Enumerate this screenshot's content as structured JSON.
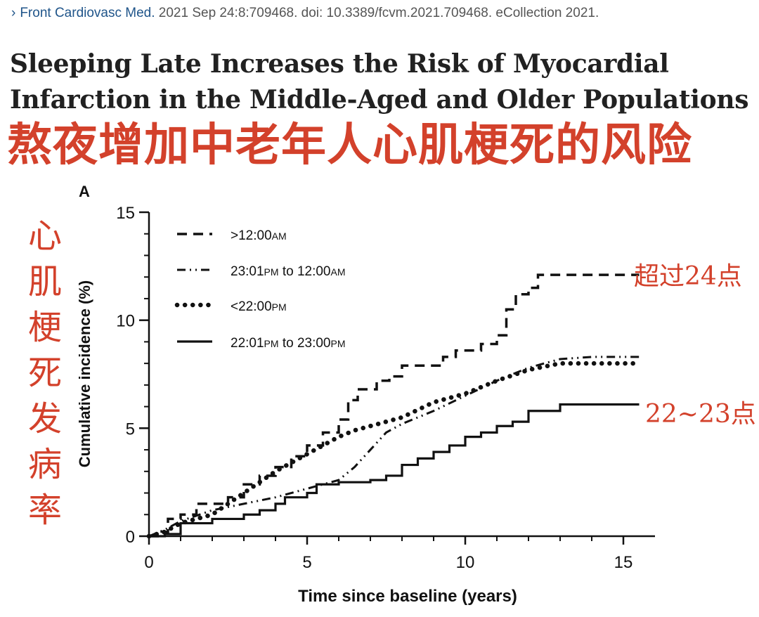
{
  "citation": {
    "journal": "Front Cardiovasc Med.",
    "details": " 2021 Sep 24:8:709468. doi: 10.3389/fcvm.2021.709468. eCollection 2021."
  },
  "title_en_line1": "Sleeping Late Increases the Risk of Myocardial",
  "title_en_line2": "Infarction in the Middle-Aged and Older Populations",
  "title_zh": "熬夜增加中老年人心肌梗死的风险",
  "side_label_zh": [
    "心",
    "肌",
    "梗",
    "死",
    "发",
    "病",
    "率"
  ],
  "annotations": {
    "late": "超过24点",
    "early": "22~23点"
  },
  "chart_data": {
    "type": "line",
    "panel_label": "A",
    "xlabel": "Time since baseline (years)",
    "ylabel": "Cumulative incidence (%)",
    "xlim": [
      0,
      15.5
    ],
    "ylim": [
      0,
      15
    ],
    "xticks": [
      0,
      5,
      10,
      15
    ],
    "yticks": [
      0,
      5,
      10,
      15
    ],
    "grid": false,
    "legend_position": "top-left",
    "series": [
      {
        "name": ">12:00AM",
        "legend_parts": [
          ">12:00",
          "AM"
        ],
        "style": "dashed",
        "step": true,
        "points": [
          [
            0,
            0
          ],
          [
            0.4,
            0.2
          ],
          [
            0.6,
            0.8
          ],
          [
            1.0,
            1.0
          ],
          [
            1.5,
            1.5
          ],
          [
            2.5,
            1.8
          ],
          [
            3.0,
            2.4
          ],
          [
            3.5,
            2.8
          ],
          [
            4.0,
            3.2
          ],
          [
            4.5,
            3.7
          ],
          [
            5.0,
            4.2
          ],
          [
            5.5,
            4.8
          ],
          [
            6.0,
            5.4
          ],
          [
            6.3,
            6.3
          ],
          [
            6.6,
            6.8
          ],
          [
            7.2,
            7.2
          ],
          [
            7.6,
            7.4
          ],
          [
            8.0,
            7.9
          ],
          [
            9.0,
            7.9
          ],
          [
            9.3,
            8.3
          ],
          [
            9.7,
            8.6
          ],
          [
            10.5,
            8.9
          ],
          [
            11.0,
            9.3
          ],
          [
            11.3,
            10.5
          ],
          [
            11.6,
            11.2
          ],
          [
            12.0,
            11.5
          ],
          [
            12.3,
            12.1
          ],
          [
            15.5,
            12.1
          ]
        ]
      },
      {
        "name": "23:01PM to 12:00AM",
        "legend_parts": [
          "23:01",
          "PM",
          " to 12:00",
          "AM"
        ],
        "style": "dashdot",
        "step": false,
        "points": [
          [
            0,
            0
          ],
          [
            0.5,
            0.3
          ],
          [
            1.0,
            0.7
          ],
          [
            2.0,
            1.2
          ],
          [
            3.0,
            1.5
          ],
          [
            4.0,
            1.8
          ],
          [
            5.0,
            2.2
          ],
          [
            5.5,
            2.4
          ],
          [
            6.0,
            2.6
          ],
          [
            6.5,
            3.2
          ],
          [
            7.0,
            4.0
          ],
          [
            7.5,
            4.8
          ],
          [
            8.0,
            5.2
          ],
          [
            9.0,
            5.8
          ],
          [
            10.0,
            6.5
          ],
          [
            11.0,
            7.2
          ],
          [
            12.0,
            7.8
          ],
          [
            13.0,
            8.2
          ],
          [
            14.0,
            8.3
          ],
          [
            15.5,
            8.3
          ]
        ]
      },
      {
        "name": "<22:00PM",
        "legend_parts": [
          "<22:00",
          "PM"
        ],
        "style": "dotted",
        "step": false,
        "points": [
          [
            0,
            0
          ],
          [
            0.5,
            0.2
          ],
          [
            1.0,
            0.6
          ],
          [
            2.0,
            1.0
          ],
          [
            3.0,
            2.0
          ],
          [
            4.0,
            3.0
          ],
          [
            5.0,
            3.8
          ],
          [
            6.0,
            4.6
          ],
          [
            6.5,
            4.9
          ],
          [
            7.0,
            5.1
          ],
          [
            8.0,
            5.5
          ],
          [
            9.0,
            6.2
          ],
          [
            10.0,
            6.6
          ],
          [
            11.0,
            7.2
          ],
          [
            12.0,
            7.7
          ],
          [
            13.0,
            8.0
          ],
          [
            15.5,
            8.0
          ]
        ]
      },
      {
        "name": "22:01PM to 23:00PM",
        "legend_parts": [
          "22:01",
          "PM",
          " to 23:00",
          "PM"
        ],
        "style": "solid",
        "step": true,
        "points": [
          [
            0,
            0
          ],
          [
            0.5,
            0.1
          ],
          [
            1.0,
            0.6
          ],
          [
            2.0,
            0.8
          ],
          [
            3.0,
            1.0
          ],
          [
            3.5,
            1.2
          ],
          [
            4.0,
            1.5
          ],
          [
            4.3,
            1.8
          ],
          [
            5.0,
            2.0
          ],
          [
            5.3,
            2.4
          ],
          [
            6.0,
            2.5
          ],
          [
            7.0,
            2.6
          ],
          [
            7.5,
            2.8
          ],
          [
            8.0,
            3.3
          ],
          [
            8.5,
            3.6
          ],
          [
            9.0,
            3.9
          ],
          [
            9.5,
            4.2
          ],
          [
            10.0,
            4.6
          ],
          [
            10.5,
            4.8
          ],
          [
            11.0,
            5.1
          ],
          [
            11.5,
            5.3
          ],
          [
            12.0,
            5.8
          ],
          [
            13.0,
            5.8
          ],
          [
            13.0,
            6.1
          ],
          [
            15.5,
            6.1
          ]
        ]
      }
    ]
  }
}
